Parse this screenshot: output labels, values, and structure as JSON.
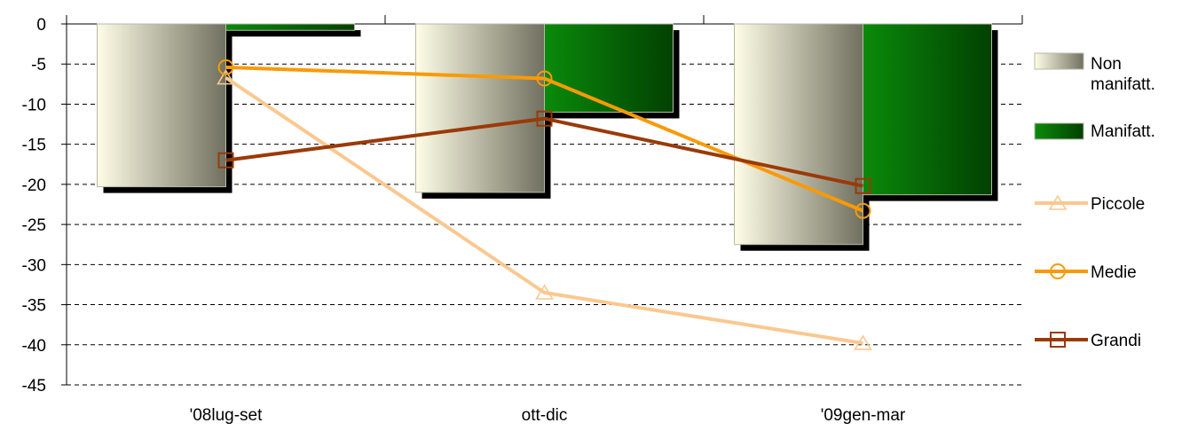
{
  "chart_data": {
    "type": "bar",
    "categories": [
      "'08lug-set",
      "ott-dic",
      "'09gen-mar"
    ],
    "ylim": [
      -45,
      0
    ],
    "yticks": [
      0,
      -5,
      -10,
      -15,
      -20,
      -25,
      -30,
      -35,
      -40,
      -45
    ],
    "ytick_labels": [
      "0",
      "-5",
      "-10",
      "-15",
      "-20",
      "-25",
      "-30",
      "-35",
      "-40",
      "-45"
    ],
    "grid": true,
    "legend_position": "right",
    "bar_series": [
      {
        "name": "Non manifatt.",
        "legend_lines": [
          "Non",
          "manifatt."
        ],
        "values": [
          -20.3,
          -21.0,
          -27.5
        ],
        "colors": [
          "#fffde6",
          "#707060"
        ]
      },
      {
        "name": "Manifatt.",
        "legend_lines": [
          "Manifatt."
        ],
        "values": [
          -0.8,
          -11.0,
          -21.3
        ],
        "colors": [
          "#0a8a0a",
          "#024002"
        ]
      }
    ],
    "line_series": [
      {
        "name": "Piccole",
        "marker": "triangle",
        "color": "#fac890",
        "values": [
          -6.7,
          -33.5,
          -39.8
        ]
      },
      {
        "name": "Medie",
        "marker": "circle",
        "color": "#f89a08",
        "values": [
          -5.4,
          -6.8,
          -23.3
        ]
      },
      {
        "name": "Grandi",
        "marker": "square",
        "color": "#9a3a08",
        "values": [
          -17.0,
          -11.8,
          -20.2
        ]
      }
    ]
  }
}
